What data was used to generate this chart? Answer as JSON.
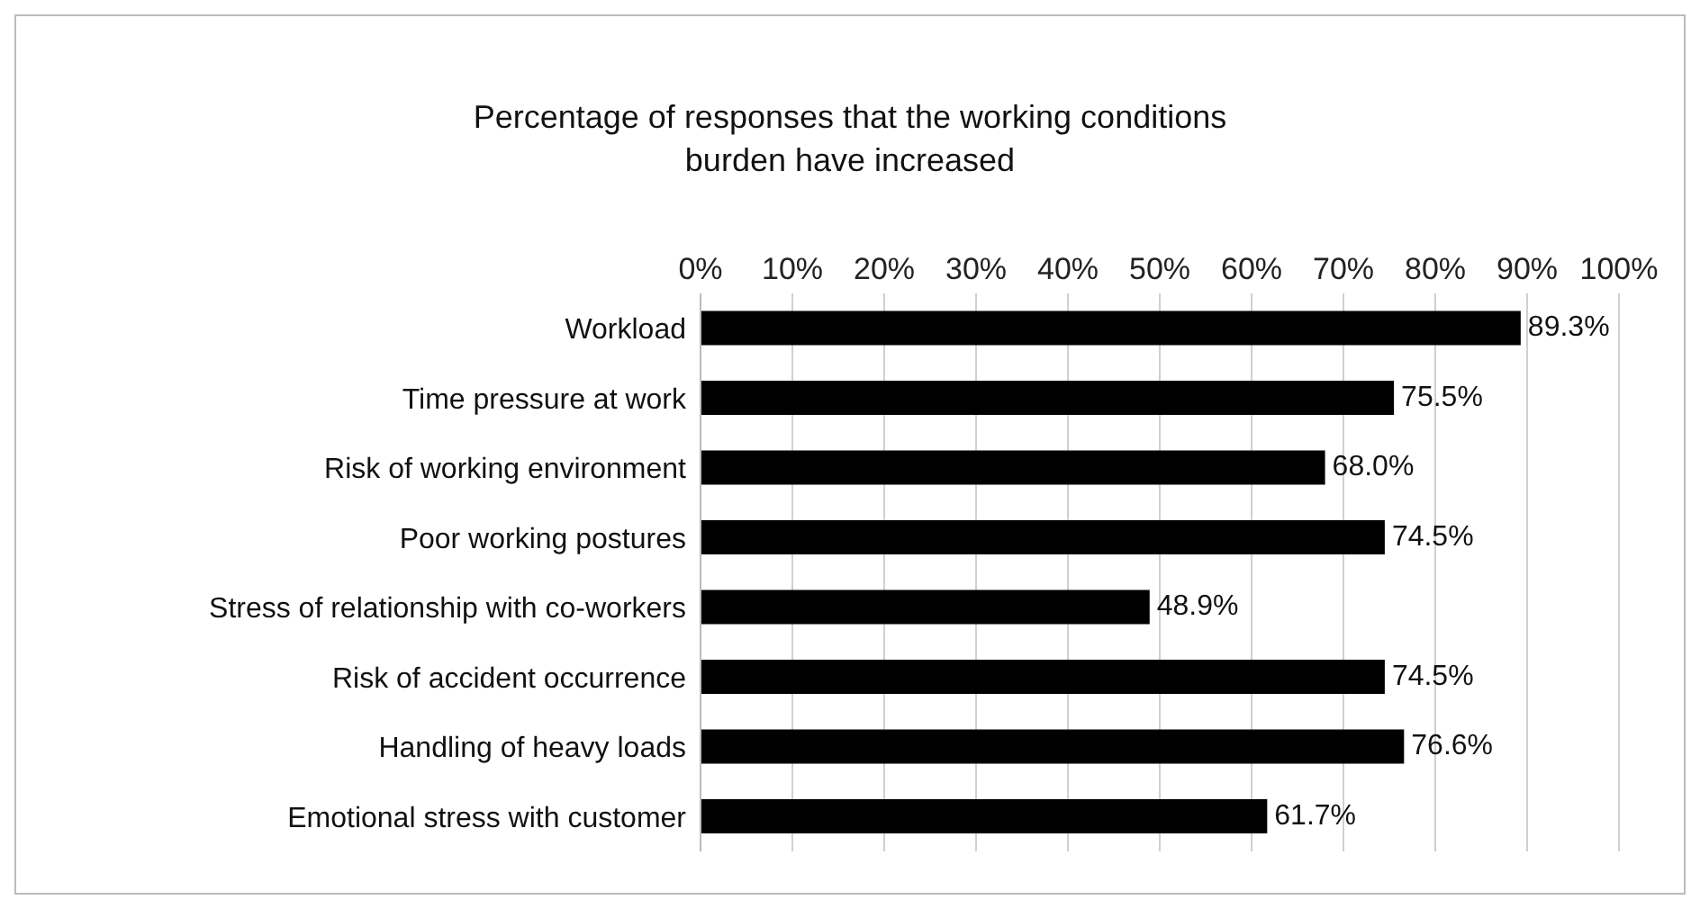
{
  "chart_data": {
    "type": "bar",
    "orientation": "horizontal",
    "title": "Percentage of responses that the working conditions\nburden have increased",
    "categories": [
      "Workload",
      "Time pressure at work",
      "Risk of working environment",
      "Poor working postures",
      "Stress of relationship with co-workers",
      "Risk of accident occurrence",
      "Handling of heavy loads",
      "Emotional stress with customer"
    ],
    "values": [
      89.3,
      75.5,
      68.0,
      74.5,
      48.9,
      74.5,
      76.6,
      61.7
    ],
    "value_labels": [
      "89.3%",
      "75.5%",
      "68.0%",
      "74.5%",
      "48.9%",
      "74.5%",
      "76.6%",
      "61.7%"
    ],
    "color": "#000000",
    "xlim": [
      0,
      100
    ],
    "xticks": [
      {
        "value": 0,
        "label": "0%"
      },
      {
        "value": 10,
        "label": "10%"
      },
      {
        "value": 20,
        "label": "20%"
      },
      {
        "value": 30,
        "label": "30%"
      },
      {
        "value": 40,
        "label": "40%"
      },
      {
        "value": 50,
        "label": "50%"
      },
      {
        "value": 60,
        "label": "60%"
      },
      {
        "value": 70,
        "label": "70%"
      },
      {
        "value": 80,
        "label": "80%"
      },
      {
        "value": 90,
        "label": "90%"
      },
      {
        "value": 100,
        "label": "100%"
      }
    ],
    "grid": "x"
  }
}
